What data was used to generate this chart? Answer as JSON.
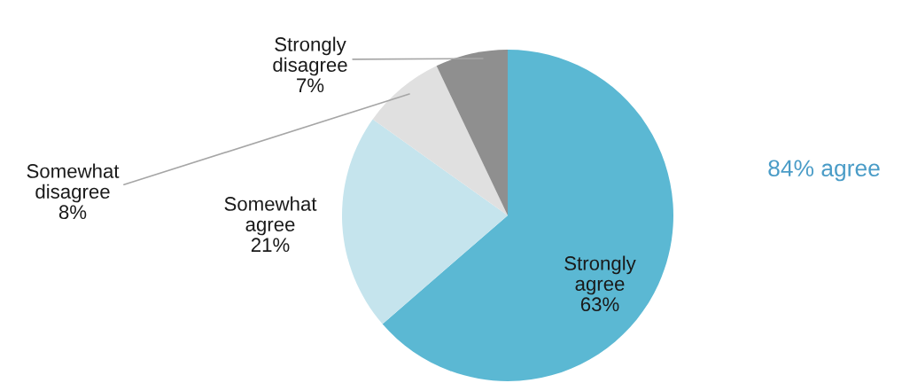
{
  "chart_data": {
    "type": "pie",
    "categories": [
      "Strongly agree",
      "Somewhat agree",
      "Somewhat disagree",
      "Strongly disagree"
    ],
    "values": [
      63,
      21,
      8,
      7
    ],
    "value_labels": [
      "63%",
      "21%",
      "8%",
      "7%"
    ],
    "colors": [
      "#5bb8d3",
      "#c5e4ed",
      "#e0e0e0",
      "#8f8f8f"
    ],
    "annotations": [
      "84% agree"
    ]
  }
}
